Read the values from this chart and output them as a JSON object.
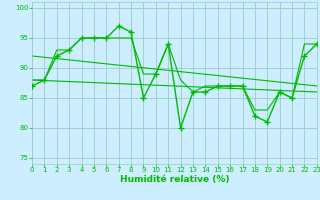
{
  "line1": {
    "x": [
      0,
      1,
      2,
      3,
      4,
      5,
      6,
      7,
      8,
      9,
      10,
      11,
      12,
      13,
      14,
      15,
      16,
      17,
      18,
      19,
      20,
      21,
      22,
      23
    ],
    "y": [
      87,
      88,
      92,
      93,
      95,
      95,
      95,
      97,
      96,
      85,
      89,
      94,
      80,
      86,
      86,
      87,
      87,
      87,
      82,
      81,
      86,
      85,
      92,
      94
    ],
    "color": "#00bb00",
    "marker": "+",
    "linewidth": 1.0,
    "markersize": 4.5,
    "markeredgewidth": 1.0
  },
  "line2": {
    "x": [
      0,
      1,
      2,
      3,
      4,
      5,
      6,
      7,
      8,
      9,
      10,
      11,
      12,
      13,
      14,
      15,
      16,
      17,
      18,
      19,
      20,
      21,
      22,
      23
    ],
    "y": [
      88,
      88,
      93,
      93,
      95,
      95,
      95,
      95,
      95,
      89,
      89,
      94,
      88,
      86,
      87,
      87,
      87,
      87,
      83,
      83,
      86,
      85,
      94,
      94
    ],
    "color": "#00bb00",
    "linewidth": 0.8
  },
  "line3_x": [
    0,
    23
  ],
  "line3_y": [
    92,
    87
  ],
  "line4_x": [
    0,
    23
  ],
  "line4_y": [
    88,
    86
  ],
  "line_color": "#00bb00",
  "trend_linewidth": 0.8,
  "background_color": "#cceeff",
  "grid_color": "#99cccc",
  "xlabel": "Humidité relative (%)",
  "xlabel_fontsize": 6.5,
  "xlabel_color": "#00bb00",
  "tick_color": "#00bb00",
  "tick_fontsize": 5.0,
  "ytick_values": [
    75,
    80,
    85,
    90,
    95,
    100
  ],
  "xtick_values": [
    0,
    1,
    2,
    3,
    4,
    5,
    6,
    7,
    8,
    9,
    10,
    11,
    12,
    13,
    14,
    15,
    16,
    17,
    18,
    19,
    20,
    21,
    22,
    23
  ],
  "xlim": [
    0,
    23
  ],
  "ylim": [
    74,
    101
  ]
}
